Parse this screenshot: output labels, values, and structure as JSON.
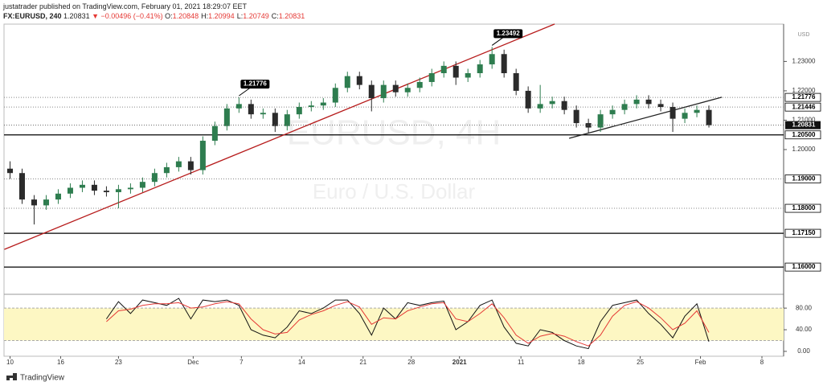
{
  "header": {
    "author_line": "justatrader published on TradingView.com, February 01, 2021 18:29:07 EET",
    "symbol": "FX:EURUSD, 240",
    "last": "1.20831",
    "change": "▼ −0.00496 (−0.41%)",
    "ohlc": [
      {
        "label": "O:",
        "value": "1.20848"
      },
      {
        "label": "H:",
        "value": "1.20994"
      },
      {
        "label": "L:",
        "value": "1.20749"
      },
      {
        "label": "C:",
        "value": "1.20831"
      }
    ]
  },
  "watermark": {
    "title": "EURUSD, 4H",
    "subtitle": "Euro / U.S. Dollar"
  },
  "footer": "TradingView",
  "chart_data": [
    {
      "type": "candlestick",
      "currency": "USD",
      "up_color": "#2e7d4f",
      "down_color": "#2b2b2b",
      "x": [
        0,
        1,
        2,
        3,
        4,
        5,
        6,
        7,
        8,
        9,
        10,
        11,
        12,
        13,
        14,
        15,
        16,
        17,
        18,
        19,
        20,
        21,
        22,
        23,
        24,
        25,
        26,
        27,
        28,
        29,
        30,
        31,
        32,
        33,
        34,
        35,
        36,
        37,
        38,
        39,
        40,
        41,
        42,
        43,
        44,
        45,
        46,
        47,
        48,
        49,
        50,
        51,
        52,
        53,
        54,
        55,
        56,
        57,
        58
      ],
      "open": [
        1.1935,
        1.192,
        1.183,
        1.181,
        1.183,
        1.185,
        1.187,
        1.188,
        1.186,
        1.1855,
        1.1865,
        1.187,
        1.189,
        1.192,
        1.194,
        1.196,
        1.193,
        1.203,
        1.208,
        1.214,
        1.2155,
        1.212,
        1.2125,
        1.208,
        1.212,
        1.2145,
        1.215,
        1.216,
        1.221,
        1.225,
        1.222,
        1.2175,
        1.222,
        1.2195,
        1.221,
        1.223,
        1.226,
        1.2285,
        1.2245,
        1.226,
        1.229,
        1.2325,
        1.226,
        1.22,
        1.214,
        1.2155,
        1.2165,
        1.2135,
        1.209,
        1.2075,
        1.212,
        1.2135,
        1.2155,
        1.217,
        1.2155,
        1.2145,
        1.2105,
        1.2125,
        1.2135
      ],
      "high": [
        1.196,
        1.1935,
        1.1845,
        1.1845,
        1.1865,
        1.1885,
        1.1895,
        1.1895,
        1.1875,
        1.188,
        1.1885,
        1.1905,
        1.1935,
        1.1955,
        1.1975,
        1.1975,
        1.2045,
        1.2095,
        1.2155,
        1.2178,
        1.217,
        1.214,
        1.214,
        1.2135,
        1.216,
        1.2165,
        1.2175,
        1.2225,
        1.2265,
        1.2265,
        1.2235,
        1.2235,
        1.2235,
        1.2225,
        1.2245,
        1.2275,
        1.23,
        1.23,
        1.2275,
        1.2305,
        1.2349,
        1.234,
        1.2275,
        1.2215,
        1.222,
        1.218,
        1.218,
        1.215,
        1.2105,
        1.2135,
        1.215,
        1.217,
        1.2185,
        1.2185,
        1.217,
        1.216,
        1.214,
        1.215,
        1.215
      ],
      "low": [
        1.19,
        1.1815,
        1.1745,
        1.1795,
        1.1815,
        1.1835,
        1.1855,
        1.1845,
        1.184,
        1.18,
        1.185,
        1.1855,
        1.1875,
        1.1905,
        1.1925,
        1.1915,
        1.1915,
        1.2015,
        1.2065,
        1.2125,
        1.2105,
        1.2105,
        1.206,
        1.2065,
        1.2105,
        1.213,
        1.2135,
        1.2145,
        1.2195,
        1.2205,
        1.213,
        1.216,
        1.218,
        1.218,
        1.2195,
        1.2215,
        1.2245,
        1.222,
        1.223,
        1.2245,
        1.2275,
        1.2245,
        1.2185,
        1.2125,
        1.2125,
        1.214,
        1.212,
        1.2075,
        1.2055,
        1.206,
        1.2105,
        1.212,
        1.214,
        1.214,
        1.213,
        1.206,
        1.209,
        1.211,
        1.2075
      ],
      "close": [
        1.192,
        1.183,
        1.181,
        1.183,
        1.185,
        1.187,
        1.188,
        1.186,
        1.1855,
        1.1865,
        1.187,
        1.189,
        1.192,
        1.194,
        1.196,
        1.193,
        1.203,
        1.208,
        1.214,
        1.2155,
        1.212,
        1.2125,
        1.208,
        1.212,
        1.2145,
        1.215,
        1.216,
        1.221,
        1.225,
        1.222,
        1.2175,
        1.222,
        1.2195,
        1.221,
        1.223,
        1.226,
        1.2285,
        1.2245,
        1.226,
        1.229,
        1.2325,
        1.226,
        1.22,
        1.214,
        1.2155,
        1.2165,
        1.2135,
        1.209,
        1.2075,
        1.212,
        1.2135,
        1.2155,
        1.217,
        1.2155,
        1.2145,
        1.2105,
        1.2125,
        1.2135,
        1.2083
      ],
      "xlim": [
        -0.5,
        64.2
      ],
      "ylim": [
        1.151,
        1.2427
      ],
      "yticks": [
        {
          "value": 1.23,
          "label": "1.23000"
        },
        {
          "value": 1.22,
          "label": "1.22000"
        },
        {
          "value": 1.21,
          "label": "1.21000"
        },
        {
          "value": 1.2,
          "label": "1.20000"
        }
      ],
      "levels": [
        {
          "value": 1.21776,
          "label": "1.21776",
          "style": "dotted"
        },
        {
          "value": 1.21446,
          "label": "1.21446",
          "style": "dotted"
        },
        {
          "value": 1.205,
          "label": "1.20500",
          "style": "solid"
        },
        {
          "value": 1.19,
          "label": "1.19000",
          "style": "dotted"
        },
        {
          "value": 1.18,
          "label": "1.18000",
          "style": "dotted"
        },
        {
          "value": 1.1715,
          "label": "1.17150",
          "style": "solid"
        },
        {
          "value": 1.16,
          "label": "1.16000",
          "style": "solid"
        }
      ],
      "last_price": 1.20831,
      "annotations": [
        {
          "x": 19,
          "y": 1.21776
        },
        {
          "x": 40,
          "y": 1.23492
        }
      ],
      "trend_lines": [
        {
          "color": "#b71c1c",
          "x": [
            -0.47,
            45.2
          ],
          "y": [
            1.16603,
            1.24274
          ]
        },
        {
          "color": "#222222",
          "x": [
            46.4,
            59.07
          ],
          "y": [
            1.20384,
            1.21781
          ]
        }
      ]
    },
    {
      "type": "line",
      "xlim": [
        -0.5,
        64.2
      ],
      "ylim": [
        -9,
        104
      ],
      "band": [
        20,
        80
      ],
      "band_color": "#fdf7c3",
      "yticks": [
        {
          "value": 80,
          "label": "80.00"
        },
        {
          "value": 40,
          "label": "40.00"
        },
        {
          "value": 0,
          "label": "0.00"
        }
      ],
      "xticks": [
        {
          "value": 0,
          "label": "10"
        },
        {
          "value": 4.2,
          "label": "16"
        },
        {
          "value": 9.0,
          "label": "23"
        },
        {
          "value": 15.2,
          "label": "Dec"
        },
        {
          "value": 19.2,
          "label": "7"
        },
        {
          "value": 24.2,
          "label": "14"
        },
        {
          "value": 29.3,
          "label": "21"
        },
        {
          "value": 33.3,
          "label": "28"
        },
        {
          "value": 37.3,
          "label": "2021"
        },
        {
          "value": 42.4,
          "label": "11"
        },
        {
          "value": 47.4,
          "label": "18"
        },
        {
          "value": 52.3,
          "label": "25"
        },
        {
          "value": 57.3,
          "label": "Feb"
        },
        {
          "value": 62.4,
          "label": "8"
        }
      ],
      "x": [
        0,
        1,
        2,
        3,
        4,
        5,
        6,
        7,
        8,
        9,
        10,
        11,
        12,
        13,
        14,
        15,
        16,
        17,
        18,
        19,
        20,
        21,
        22,
        23,
        24,
        25,
        26,
        27,
        28,
        29,
        30,
        31,
        32,
        33,
        34,
        35,
        36,
        37,
        38,
        39,
        40,
        41,
        42,
        43,
        44,
        45,
        46,
        47,
        48,
        49,
        50,
        51,
        52,
        53,
        54,
        55,
        56,
        57,
        58
      ],
      "series": [
        {
          "color": "#111111",
          "values": [
            null,
            null,
            null,
            null,
            null,
            null,
            null,
            null,
            60,
            92,
            70,
            95,
            90,
            85,
            98,
            60,
            95,
            92,
            95,
            85,
            40,
            30,
            25,
            45,
            75,
            70,
            80,
            95,
            95,
            70,
            30,
            80,
            60,
            90,
            85,
            90,
            93,
            40,
            55,
            85,
            95,
            45,
            15,
            10,
            40,
            35,
            20,
            10,
            5,
            55,
            85,
            90,
            95,
            70,
            50,
            25,
            65,
            88,
            18
          ]
        },
        {
          "color": "#e53935",
          "values": [
            null,
            null,
            null,
            null,
            null,
            null,
            null,
            null,
            55,
            75,
            78,
            85,
            88,
            88,
            90,
            80,
            82,
            88,
            92,
            88,
            60,
            40,
            32,
            35,
            58,
            68,
            75,
            85,
            92,
            82,
            50,
            62,
            60,
            75,
            82,
            88,
            90,
            60,
            55,
            70,
            88,
            62,
            30,
            15,
            28,
            33,
            28,
            18,
            10,
            30,
            65,
            85,
            92,
            80,
            62,
            40,
            52,
            75,
            35
          ]
        }
      ]
    }
  ]
}
